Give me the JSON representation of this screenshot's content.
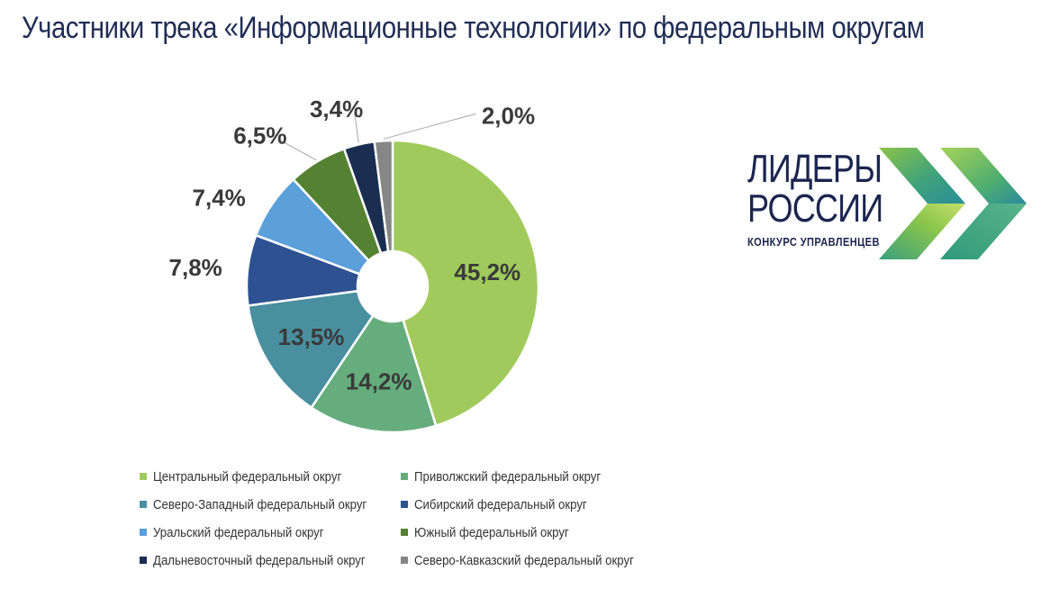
{
  "title": "Участники трека «Информационные технологии» по федеральным округам",
  "chart_data": {
    "type": "pie",
    "donut": true,
    "title": "Участники трека «Информационные технологии» по федеральным округам",
    "series": [
      {
        "name": "Центральный федеральный округ",
        "value": 45.2,
        "label": "45,2%",
        "color": "#a0cb5c"
      },
      {
        "name": "Приволжский федеральный округ",
        "value": 14.2,
        "label": "14,2%",
        "color": "#66ad7d"
      },
      {
        "name": "Северо-Западный федеральный округ",
        "value": 13.5,
        "label": "13,5%",
        "color": "#4a8fa0"
      },
      {
        "name": "Сибирский федеральный округ",
        "value": 7.8,
        "label": "7,8%",
        "color": "#2e5191"
      },
      {
        "name": "Уральский федеральный округ",
        "value": 7.4,
        "label": "7,4%",
        "color": "#5b9fdb"
      },
      {
        "name": "Южный федеральный округ",
        "value": 6.5,
        "label": "6,5%",
        "color": "#548232"
      },
      {
        "name": "Дальневосточный федеральный округ",
        "value": 3.4,
        "label": "3,4%",
        "color": "#1a2e52"
      },
      {
        "name": "Северо-Кавказский федеральный округ",
        "value": 2.0,
        "label": "2,0%",
        "color": "#868686"
      }
    ],
    "legend_position": "bottom"
  },
  "logo": {
    "line1": "ЛИДЕРЫ",
    "line2": "РОССИИ",
    "subtitle": "КОНКУРС УПРАВЛЕНЦЕВ"
  }
}
